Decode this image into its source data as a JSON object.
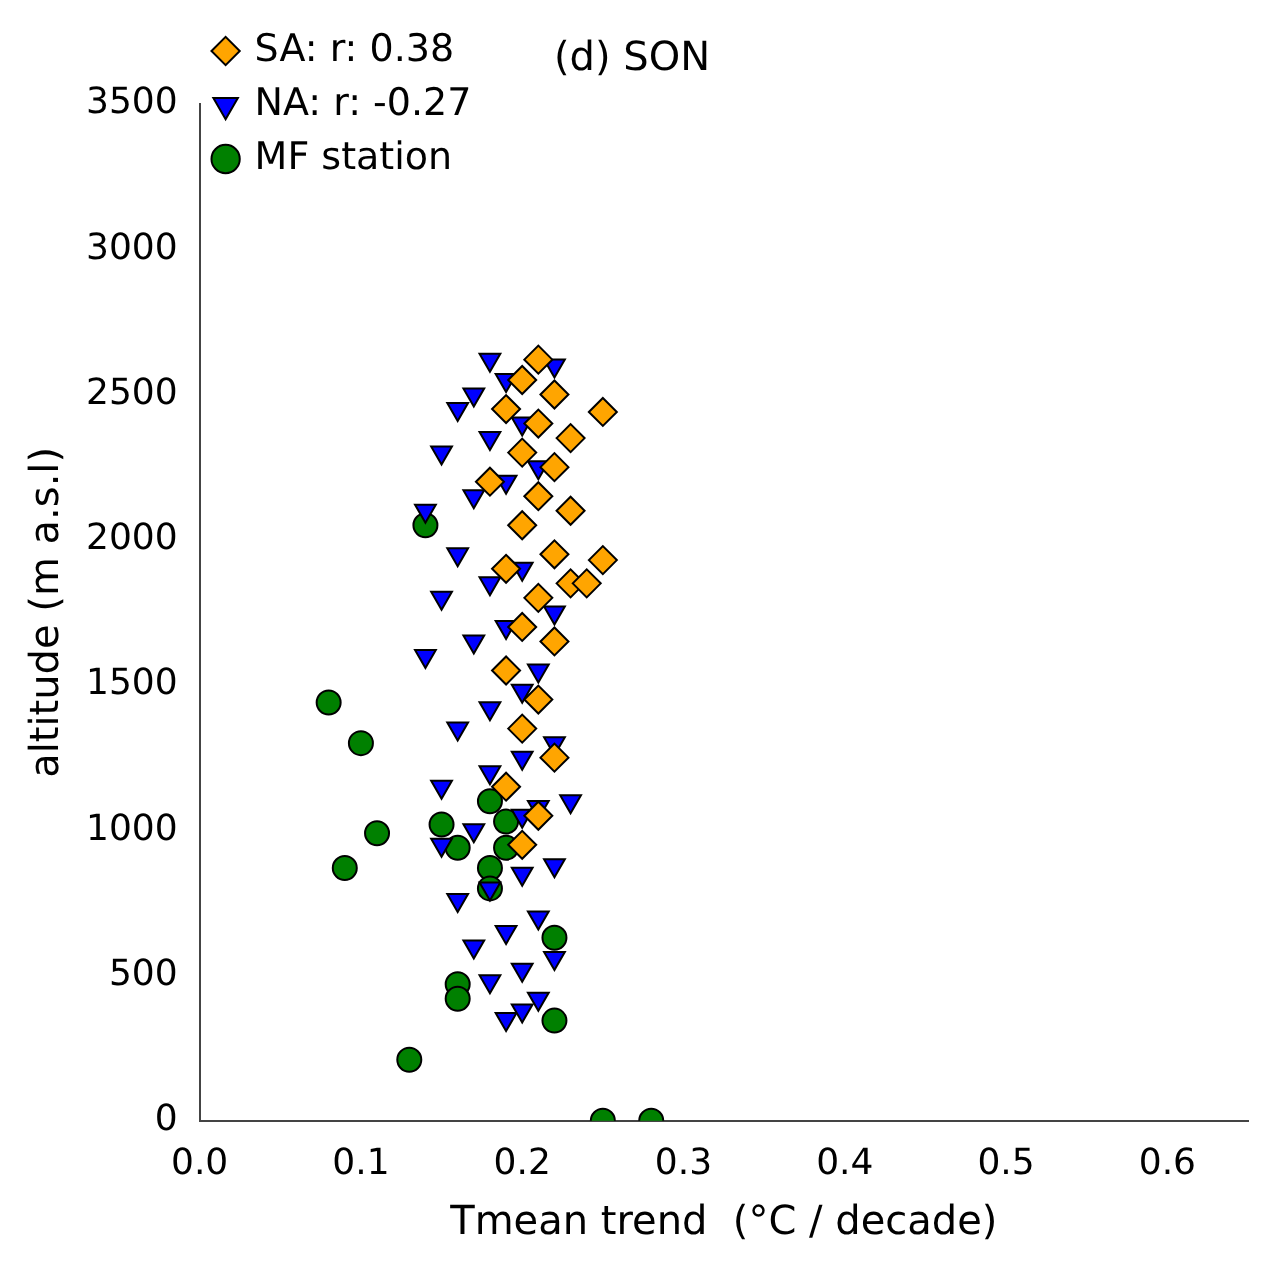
{
  "chart_data": {
    "type": "scatter",
    "title": "(d) SON",
    "xlabel": "Tmean trend  (°C / decade)",
    "ylabel": "altitude (m a.s.l)",
    "xlim": [
      0,
      0.65
    ],
    "xticks": [
      {
        "value": 0,
        "label": "0.0"
      },
      {
        "value": 0.1,
        "label": "0.1"
      },
      {
        "value": 0.2,
        "label": "0.2"
      },
      {
        "value": 0.3,
        "label": "0.3"
      },
      {
        "value": 0.4,
        "label": "0.4"
      },
      {
        "value": 0.5,
        "label": "0.5"
      },
      {
        "value": 0.6,
        "label": "0.6"
      }
    ],
    "ylim": [
      0,
      3500
    ],
    "yticks": [
      0,
      500,
      1000,
      1500,
      2000,
      2500,
      3000,
      3500
    ],
    "grid": false,
    "legend": "top left",
    "series": [
      {
        "name": "SA: r: 0.38",
        "color": "#ffa500",
        "marker": "diamond",
        "x": [
          0.2,
          0.21,
          0.19,
          0.22,
          0.2,
          0.21,
          0.19,
          0.22,
          0.2,
          0.21,
          0.23,
          0.24,
          0.25,
          0.19,
          0.22,
          0.2,
          0.23,
          0.21,
          0.18,
          0.22,
          0.2,
          0.23,
          0.25,
          0.21,
          0.19,
          0.22,
          0.2,
          0.21
        ],
        "values": [
          950,
          1050,
          1150,
          1250,
          1350,
          1450,
          1550,
          1650,
          1700,
          1800,
          1850,
          1850,
          1930,
          1900,
          1950,
          2050,
          2100,
          2150,
          2200,
          2250,
          2300,
          2350,
          2440,
          2400,
          2450,
          2500,
          2550,
          2620
        ]
      },
      {
        "name": "NA: r: -0.27",
        "color": "#0000ff",
        "marker": "triangle",
        "x": [
          0.19,
          0.2,
          0.21,
          0.18,
          0.2,
          0.22,
          0.17,
          0.19,
          0.21,
          0.16,
          0.18,
          0.2,
          0.22,
          0.15,
          0.17,
          0.2,
          0.21,
          0.23,
          0.15,
          0.18,
          0.2,
          0.22,
          0.16,
          0.18,
          0.2,
          0.21,
          0.14,
          0.17,
          0.19,
          0.22,
          0.15,
          0.18,
          0.2,
          0.16,
          0.14,
          0.17,
          0.19,
          0.21,
          0.15,
          0.18,
          0.2,
          0.16,
          0.17,
          0.19,
          0.22,
          0.18
        ],
        "values": [
          350,
          380,
          420,
          480,
          520,
          560,
          600,
          650,
          700,
          760,
          800,
          850,
          880,
          950,
          1000,
          1050,
          1080,
          1100,
          1150,
          1200,
          1250,
          1300,
          1350,
          1420,
          1480,
          1550,
          1600,
          1650,
          1700,
          1750,
          1800,
          1850,
          1900,
          1950,
          2100,
          2150,
          2200,
          2250,
          2300,
          2350,
          2400,
          2450,
          2500,
          2550,
          2600,
          2620
        ]
      },
      {
        "name": "MF station",
        "color": "#008000",
        "marker": "circle",
        "x": [
          0.08,
          0.1,
          0.11,
          0.09,
          0.15,
          0.16,
          0.18,
          0.19,
          0.19,
          0.18,
          0.18,
          0.22,
          0.16,
          0.16,
          0.22,
          0.13,
          0.25,
          0.28,
          0.14
        ],
        "values": [
          1440,
          1300,
          990,
          870,
          1020,
          940,
          1100,
          1030,
          940,
          870,
          800,
          630,
          470,
          420,
          345,
          210,
          0,
          0,
          2050
        ]
      }
    ]
  }
}
